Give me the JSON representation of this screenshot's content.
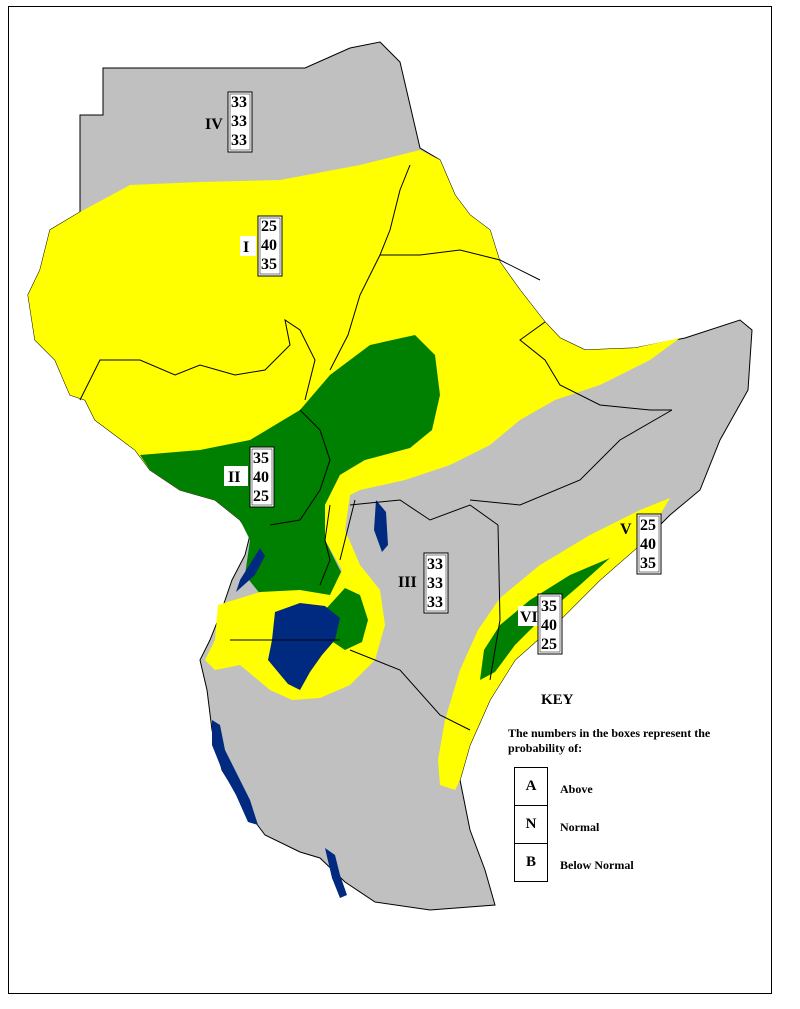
{
  "colors": {
    "yellow": "#ffff00",
    "green": "#008000",
    "gray": "#c0c0c0",
    "water": "#002a80",
    "border": "#000000",
    "background": "#ffffff"
  },
  "zones": [
    {
      "id": "I",
      "label": "I",
      "color": "yellow",
      "probabilities": [
        "25",
        "40",
        "35"
      ]
    },
    {
      "id": "II",
      "label": "II",
      "color": "green",
      "probabilities": [
        "35",
        "40",
        "25"
      ]
    },
    {
      "id": "III",
      "label": "III",
      "color": "gray",
      "probabilities": [
        "33",
        "33",
        "33"
      ]
    },
    {
      "id": "IV",
      "label": "IV",
      "color": "gray",
      "probabilities": [
        "33",
        "33",
        "33"
      ]
    },
    {
      "id": "V",
      "label": "V",
      "color": "yellow",
      "probabilities": [
        "25",
        "40",
        "35"
      ]
    },
    {
      "id": "VI",
      "label": "VI",
      "color": "green",
      "probabilities": [
        "35",
        "40",
        "25"
      ]
    }
  ],
  "key": {
    "title": "KEY",
    "description": "The numbers in the boxes represent the probability of:",
    "rows": [
      {
        "letter": "A",
        "text": "Above"
      },
      {
        "letter": "N",
        "text": "Normal"
      },
      {
        "letter": "B",
        "text": "Below Normal"
      }
    ]
  }
}
